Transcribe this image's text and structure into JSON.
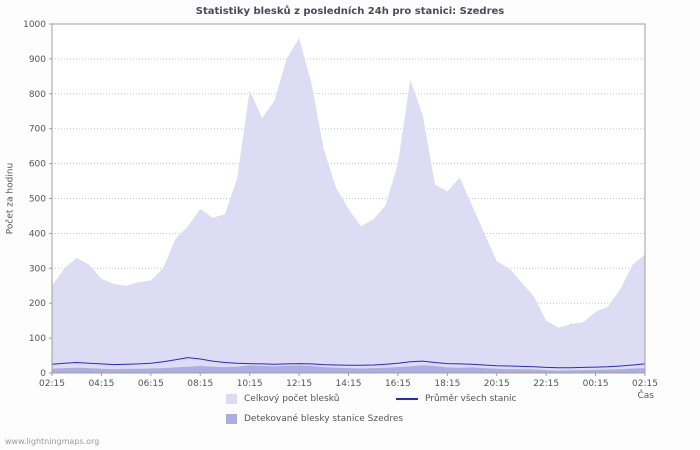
{
  "title": "Statistiky blesků z posledních 24h pro stanici: Szedres",
  "ylabel": "Počet za hodinu",
  "xlabel": "Čas",
  "footer": "www.lightningmaps.org",
  "legend": {
    "total": "Celkový počet blesků",
    "average": "Průměr všech stanic",
    "detected": "Detekované blesky stanice Szedres"
  },
  "colors": {
    "total_fill": "#dcdcf4",
    "detected_fill": "#adade2",
    "average_line": "#2a2ac0",
    "grid": "#c8c8c8",
    "axis": "#a0a0a0",
    "text": "#555555"
  },
  "chart_data": {
    "type": "area",
    "title": "Statistiky blesků z posledních 24h pro stanici: Szedres",
    "xlabel": "Čas",
    "ylabel": "Počet za hodinu",
    "ylim": [
      0,
      1000
    ],
    "y_tick_step": 100,
    "grid": "horizontal-dotted",
    "legend_position": "bottom",
    "x_tick_labels": [
      "02:15",
      "04:15",
      "06:15",
      "08:15",
      "10:15",
      "12:15",
      "14:15",
      "16:15",
      "18:15",
      "20:15",
      "22:15",
      "00:15",
      "02:15"
    ],
    "x_note": "49 samples at 30-minute intervals from 02:15 to 02:15 (24h)",
    "series": [
      {
        "name": "Celkový počet blesků",
        "style": "area",
        "values": [
          250,
          300,
          330,
          310,
          270,
          255,
          250,
          260,
          265,
          300,
          385,
          420,
          470,
          445,
          455,
          560,
          810,
          730,
          780,
          900,
          960,
          830,
          640,
          530,
          470,
          420,
          440,
          480,
          600,
          840,
          740,
          540,
          520,
          560,
          480,
          400,
          320,
          300,
          260,
          220,
          150,
          130,
          140,
          145,
          175,
          190,
          240,
          310,
          340
        ]
      },
      {
        "name": "Detekované blesky stanice Szedres",
        "style": "area",
        "values": [
          12,
          14,
          15,
          14,
          12,
          11,
          12,
          12,
          13,
          14,
          16,
          18,
          20,
          18,
          17,
          18,
          22,
          20,
          19,
          21,
          22,
          20,
          17,
          15,
          14,
          13,
          14,
          15,
          17,
          19,
          22,
          20,
          16,
          15,
          16,
          14,
          12,
          11,
          11,
          10,
          8,
          7,
          8,
          8,
          9,
          10,
          11,
          13,
          14
        ]
      },
      {
        "name": "Průměr všech stanic",
        "style": "line",
        "values": [
          25,
          28,
          30,
          28,
          26,
          24,
          25,
          26,
          28,
          32,
          38,
          44,
          40,
          34,
          30,
          28,
          27,
          26,
          25,
          26,
          27,
          26,
          24,
          23,
          22,
          22,
          23,
          25,
          28,
          32,
          34,
          30,
          27,
          26,
          25,
          23,
          21,
          20,
          19,
          18,
          16,
          15,
          15,
          16,
          17,
          18,
          20,
          23,
          26
        ]
      }
    ]
  }
}
